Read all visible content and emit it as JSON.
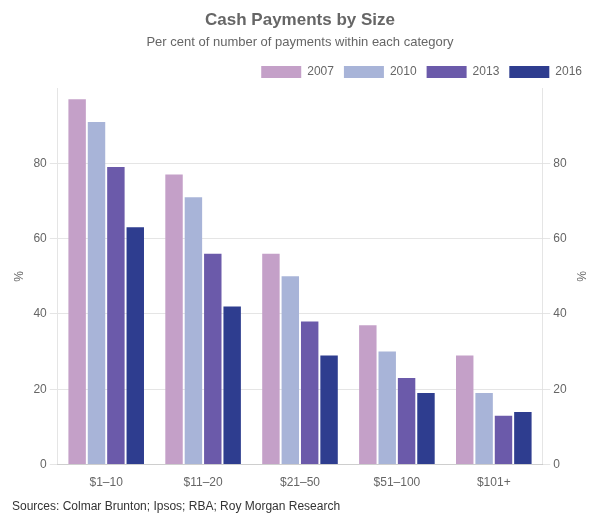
{
  "chart_data": {
    "type": "bar",
    "title": "Cash Payments by Size",
    "subtitle": "Per cent of number of payments within each category",
    "source": "Sources: Colmar Brunton; Ipsos; RBA; Roy Morgan Research",
    "categories": [
      "$1–10",
      "$11–20",
      "$21–50",
      "$51–100",
      "$101+"
    ],
    "series": [
      {
        "name": "2007",
        "color": "#c4a0c8",
        "values": [
          97,
          77,
          56,
          37,
          29
        ]
      },
      {
        "name": "2010",
        "color": "#a8b4d8",
        "values": [
          91,
          71,
          50,
          30,
          19
        ]
      },
      {
        "name": "2013",
        "color": "#6b5aaa",
        "values": [
          79,
          56,
          38,
          23,
          13
        ]
      },
      {
        "name": "2016",
        "color": "#2e3d8f",
        "values": [
          63,
          42,
          29,
          19,
          14
        ]
      }
    ],
    "ylabel": "%",
    "y2label": "%",
    "ylim": [
      0,
      100
    ],
    "yticks": [
      0,
      20,
      40,
      60,
      80
    ],
    "y2lim": [
      0,
      100
    ],
    "y2ticks": [
      0,
      20,
      40,
      60,
      80
    ],
    "grid": true,
    "legend": "upper right"
  }
}
